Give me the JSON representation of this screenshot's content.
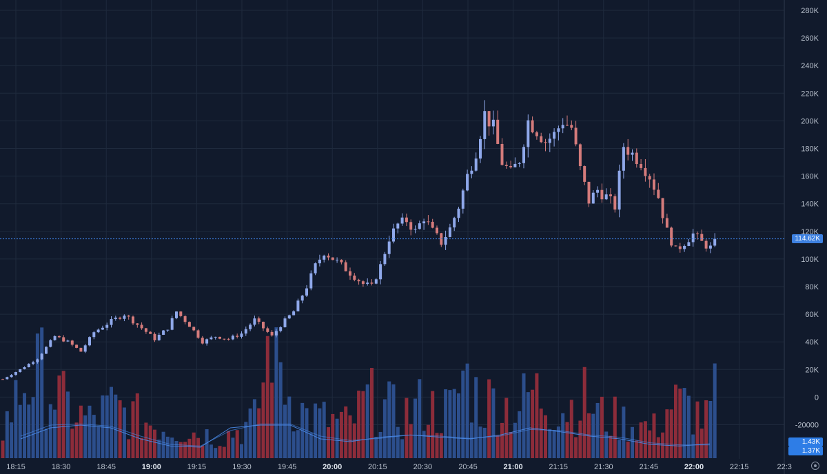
{
  "chart_data": {
    "type": "candlestick",
    "price_axis": {
      "ticks": [
        "280K",
        "260K",
        "240K",
        "220K",
        "200K",
        "180K",
        "160K",
        "140K",
        "120K",
        "100K",
        "80K",
        "60K",
        "40K",
        "20K",
        "0",
        "-20000"
      ],
      "tick_values": [
        280000,
        260000,
        240000,
        220000,
        200000,
        180000,
        160000,
        140000,
        120000,
        100000,
        80000,
        60000,
        40000,
        20000,
        0,
        -20000
      ]
    },
    "time_axis": {
      "ticks": [
        "18:15",
        "18:30",
        "18:45",
        "19:00",
        "19:15",
        "19:30",
        "19:45",
        "20:00",
        "20:15",
        "20:30",
        "20:45",
        "21:00",
        "21:15",
        "21:30",
        "21:45",
        "22:00",
        "22:15",
        "22:3"
      ],
      "bold": [
        false,
        false,
        false,
        true,
        false,
        false,
        false,
        true,
        false,
        false,
        false,
        true,
        false,
        false,
        false,
        true,
        false,
        false
      ]
    },
    "last_price": {
      "label": "114.62K",
      "value": 114620
    },
    "volume_labels": [
      "1.43K",
      "1.37K"
    ],
    "colors": {
      "background": "#111a2c",
      "up": "#8fa8ea",
      "down": "#d47b7b",
      "vol_up": "#2c4e8c",
      "vol_down": "#8c2c3a",
      "ma_line": "#4a8be8",
      "last_price_badge": "#3d80e0",
      "vol_badge": "#2e7de6",
      "grid": "#1f2a3d"
    },
    "grid": true,
    "price_path": [
      [
        0,
        13000
      ],
      [
        4,
        20000
      ],
      [
        8,
        28000
      ],
      [
        11,
        40000
      ],
      [
        12,
        44000
      ],
      [
        15,
        40000
      ],
      [
        18,
        33000
      ],
      [
        21,
        47000
      ],
      [
        25,
        55000
      ],
      [
        28,
        60000
      ],
      [
        30,
        55000
      ],
      [
        32,
        50000
      ],
      [
        35,
        42000
      ],
      [
        38,
        50000
      ],
      [
        40,
        62000
      ],
      [
        43,
        52000
      ],
      [
        46,
        40000
      ],
      [
        49,
        44000
      ],
      [
        52,
        42000
      ],
      [
        55,
        46000
      ],
      [
        58,
        56000
      ],
      [
        60,
        50000
      ],
      [
        62,
        44000
      ],
      [
        64,
        52000
      ],
      [
        67,
        62000
      ],
      [
        70,
        80000
      ],
      [
        72,
        95000
      ],
      [
        74,
        105000
      ],
      [
        77,
        98000
      ],
      [
        80,
        90000
      ],
      [
        83,
        82000
      ],
      [
        85,
        80000
      ],
      [
        87,
        95000
      ],
      [
        89,
        115000
      ],
      [
        91,
        125000
      ],
      [
        93,
        128000
      ],
      [
        95,
        120000
      ],
      [
        97,
        130000
      ],
      [
        99,
        120000
      ],
      [
        101,
        112000
      ],
      [
        103,
        122000
      ],
      [
        105,
        138000
      ],
      [
        107,
        160000
      ],
      [
        109,
        178000
      ],
      [
        111,
        205000
      ],
      [
        113,
        195000
      ],
      [
        115,
        170000
      ],
      [
        117,
        162000
      ],
      [
        119,
        172000
      ],
      [
        121,
        200000
      ],
      [
        123,
        193000
      ],
      [
        125,
        185000
      ],
      [
        127,
        190000
      ],
      [
        129,
        200000
      ],
      [
        131,
        195000
      ],
      [
        133,
        165000
      ],
      [
        135,
        142000
      ],
      [
        137,
        150000
      ],
      [
        139,
        145000
      ],
      [
        141,
        138000
      ],
      [
        143,
        182000
      ],
      [
        145,
        176000
      ],
      [
        147,
        170000
      ],
      [
        149,
        160000
      ],
      [
        151,
        145000
      ],
      [
        153,
        120000
      ],
      [
        155,
        106000
      ],
      [
        157,
        112000
      ],
      [
        159,
        118000
      ],
      [
        161,
        112000
      ],
      [
        163,
        108000
      ],
      [
        164,
        114620
      ]
    ],
    "volume_path": [
      [
        0,
        700
      ],
      [
        5,
        1800
      ],
      [
        9,
        2000
      ],
      [
        12,
        1500
      ],
      [
        16,
        1100
      ],
      [
        20,
        900
      ],
      [
        25,
        1200
      ],
      [
        30,
        1000
      ],
      [
        35,
        800
      ],
      [
        40,
        700
      ],
      [
        45,
        600
      ],
      [
        50,
        500
      ],
      [
        55,
        700
      ],
      [
        58,
        900
      ],
      [
        60,
        1800
      ],
      [
        62,
        3200
      ],
      [
        64,
        2200
      ],
      [
        66,
        1500
      ],
      [
        70,
        1000
      ],
      [
        75,
        900
      ],
      [
        80,
        800
      ],
      [
        84,
        1400
      ],
      [
        88,
        1200
      ],
      [
        92,
        1000
      ],
      [
        97,
        1300
      ],
      [
        100,
        1100
      ],
      [
        104,
        1200
      ],
      [
        106,
        2000
      ],
      [
        108,
        1700
      ],
      [
        110,
        1300
      ],
      [
        114,
        1400
      ],
      [
        118,
        1100
      ],
      [
        122,
        1600
      ],
      [
        126,
        1300
      ],
      [
        130,
        1200
      ],
      [
        134,
        1400
      ],
      [
        138,
        1000
      ],
      [
        142,
        900
      ],
      [
        146,
        800
      ],
      [
        150,
        700
      ],
      [
        154,
        1300
      ],
      [
        158,
        1200
      ],
      [
        162,
        900
      ],
      [
        164,
        1430
      ]
    ],
    "moving_averages": [
      {
        "values": [
          0.35,
          0.55,
          0.6,
          0.55,
          0.35,
          0.22,
          0.2,
          0.55,
          0.6,
          0.6,
          0.35,
          0.3,
          0.38,
          0.42,
          0.38,
          0.35,
          0.42,
          0.55,
          0.48,
          0.4,
          0.35,
          0.25,
          0.22,
          0.26
        ]
      },
      {
        "values": [
          0.4,
          0.6,
          0.62,
          0.58,
          0.4,
          0.25,
          0.22,
          0.5,
          0.62,
          0.62,
          0.4,
          0.32,
          0.36,
          0.42,
          0.4,
          0.36,
          0.4,
          0.52,
          0.5,
          0.42,
          0.38,
          0.28,
          0.24,
          0.24
        ]
      }
    ]
  }
}
